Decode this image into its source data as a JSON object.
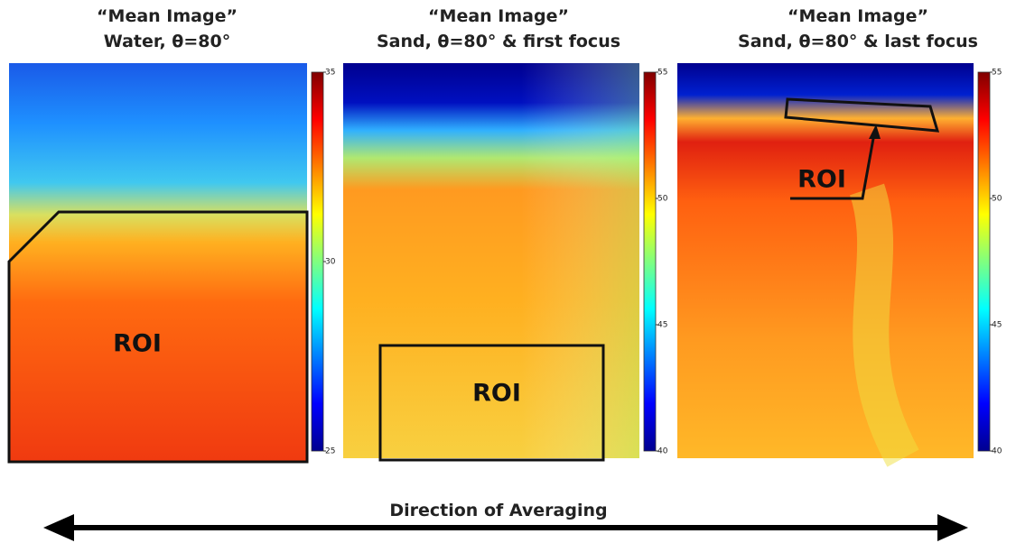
{
  "panels": [
    {
      "title": "“Mean Image”",
      "subtitle": "Water, θ=80°",
      "roi": "ROI",
      "colorbar": {
        "range": [
          25,
          35
        ],
        "ticks": [
          25,
          30,
          35
        ]
      }
    },
    {
      "title": "“Mean Image”",
      "subtitle": "Sand, θ=80° & first focus",
      "roi": "ROI",
      "colorbar": {
        "range": [
          40,
          55
        ],
        "ticks": [
          40,
          45,
          50,
          55
        ]
      }
    },
    {
      "title": "“Mean Image”",
      "subtitle": "Sand, θ=80° & last focus",
      "roi": "ROI",
      "colorbar": {
        "range": [
          40,
          55
        ],
        "ticks": [
          40,
          45,
          50,
          55
        ]
      }
    }
  ],
  "caption": "Direction of Averaging"
}
